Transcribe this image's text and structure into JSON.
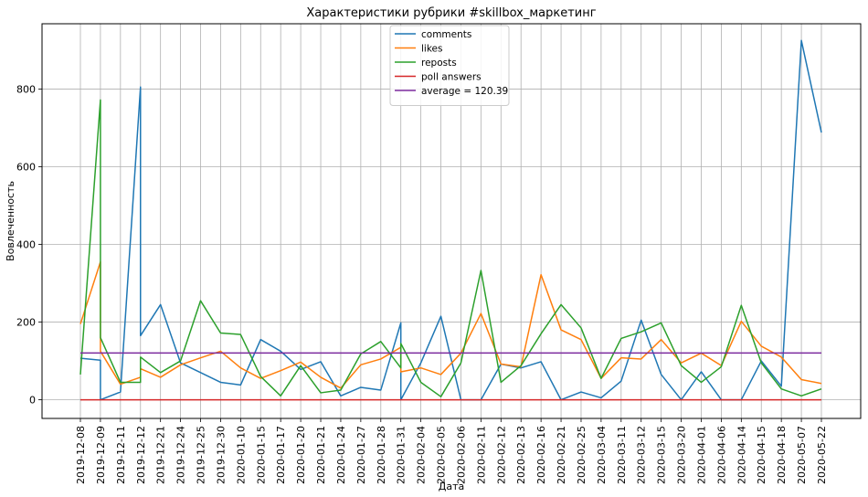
{
  "chart_data": {
    "type": "line",
    "title": "Характеристики рубрики #skillbox_маркетинг",
    "xlabel": "Дата",
    "ylabel": "Вовлеченность",
    "ylim": [
      -48,
      968
    ],
    "yticks": [
      0,
      200,
      400,
      600,
      800
    ],
    "grid": true,
    "legend_position": "top-center",
    "categories": [
      "2019-12-08",
      "2019-12-09",
      "2019-12-11",
      "2019-12-12",
      "2019-12-21",
      "2019-12-24",
      "2019-12-25",
      "2019-12-30",
      "2020-01-10",
      "2020-01-15",
      "2020-01-17",
      "2020-01-20",
      "2020-01-21",
      "2020-01-24",
      "2020-01-27",
      "2020-01-28",
      "2020-01-31",
      "2020-02-04",
      "2020-02-05",
      "2020-02-06",
      "2020-02-11",
      "2020-02-12",
      "2020-02-13",
      "2020-02-16",
      "2020-02-21",
      "2020-02-25",
      "2020-03-04",
      "2020-03-11",
      "2020-03-12",
      "2020-03-15",
      "2020-03-20",
      "2020-04-01",
      "2020-04-06",
      "2020-04-14",
      "2020-04-15",
      "2020-04-18",
      "2020-05-07",
      "2020-05-22"
    ],
    "series": [
      {
        "name": "comments",
        "color": "#1f77b4",
        "points": [
          [
            0,
            107
          ],
          [
            1,
            102
          ],
          [
            1,
            0
          ],
          [
            2,
            20
          ],
          [
            3,
            805
          ],
          [
            3,
            165
          ],
          [
            4,
            245
          ],
          [
            5,
            95
          ],
          [
            6,
            70
          ],
          [
            7,
            45
          ],
          [
            8,
            38
          ],
          [
            9,
            155
          ],
          [
            10,
            125
          ],
          [
            11,
            78
          ],
          [
            12,
            98
          ],
          [
            13,
            10
          ],
          [
            14,
            32
          ],
          [
            15,
            25
          ],
          [
            16,
            198
          ],
          [
            16,
            0
          ],
          [
            17,
            95
          ],
          [
            18,
            215
          ],
          [
            19,
            0
          ],
          [
            20,
            0
          ],
          [
            21,
            92
          ],
          [
            22,
            82
          ],
          [
            23,
            98
          ],
          [
            24,
            0
          ],
          [
            25,
            20
          ],
          [
            26,
            5
          ],
          [
            27,
            48
          ],
          [
            28,
            205
          ],
          [
            29,
            65
          ],
          [
            30,
            0
          ],
          [
            31,
            72
          ],
          [
            32,
            0
          ],
          [
            33,
            0
          ],
          [
            34,
            100
          ],
          [
            35,
            35
          ],
          [
            36,
            925
          ],
          [
            37,
            688
          ]
        ]
      },
      {
        "name": "likes",
        "color": "#ff7f0e",
        "points": [
          [
            0,
            195
          ],
          [
            1,
            355
          ],
          [
            1,
            125
          ],
          [
            2,
            40
          ],
          [
            3,
            58
          ],
          [
            3,
            80
          ],
          [
            4,
            58
          ],
          [
            5,
            90
          ],
          [
            6,
            108
          ],
          [
            7,
            125
          ],
          [
            8,
            82
          ],
          [
            9,
            55
          ],
          [
            10,
            75
          ],
          [
            11,
            97
          ],
          [
            12,
            58
          ],
          [
            13,
            30
          ],
          [
            14,
            90
          ],
          [
            15,
            105
          ],
          [
            16,
            135
          ],
          [
            16,
            72
          ],
          [
            17,
            82
          ],
          [
            18,
            65
          ],
          [
            19,
            120
          ],
          [
            20,
            222
          ],
          [
            21,
            92
          ],
          [
            22,
            85
          ],
          [
            23,
            322
          ],
          [
            24,
            180
          ],
          [
            25,
            155
          ],
          [
            26,
            55
          ],
          [
            27,
            108
          ],
          [
            28,
            105
          ],
          [
            29,
            155
          ],
          [
            30,
            95
          ],
          [
            31,
            120
          ],
          [
            32,
            88
          ],
          [
            33,
            202
          ],
          [
            34,
            138
          ],
          [
            35,
            110
          ],
          [
            36,
            52
          ],
          [
            37,
            42
          ]
        ]
      },
      {
        "name": "reposts",
        "color": "#2ca02c",
        "points": [
          [
            0,
            65
          ],
          [
            1,
            772
          ],
          [
            1,
            160
          ],
          [
            2,
            45
          ],
          [
            3,
            45
          ],
          [
            3,
            110
          ],
          [
            4,
            70
          ],
          [
            5,
            100
          ],
          [
            6,
            255
          ],
          [
            7,
            172
          ],
          [
            8,
            168
          ],
          [
            9,
            60
          ],
          [
            10,
            10
          ],
          [
            11,
            88
          ],
          [
            12,
            18
          ],
          [
            13,
            25
          ],
          [
            14,
            118
          ],
          [
            15,
            150
          ],
          [
            16,
            82
          ],
          [
            16,
            145
          ],
          [
            17,
            45
          ],
          [
            18,
            8
          ],
          [
            19,
            95
          ],
          [
            20,
            333
          ],
          [
            21,
            45
          ],
          [
            22,
            88
          ],
          [
            23,
            170
          ],
          [
            24,
            245
          ],
          [
            25,
            185
          ],
          [
            26,
            55
          ],
          [
            27,
            158
          ],
          [
            28,
            175
          ],
          [
            29,
            198
          ],
          [
            30,
            88
          ],
          [
            31,
            45
          ],
          [
            32,
            85
          ],
          [
            33,
            243
          ],
          [
            34,
            95
          ],
          [
            35,
            28
          ],
          [
            36,
            10
          ],
          [
            37,
            28
          ]
        ]
      },
      {
        "name": "poll answers",
        "color": "#d62728",
        "points": [
          [
            0,
            0
          ],
          [
            37,
            0
          ]
        ]
      },
      {
        "name": "average = 120.39",
        "color": "#7b2a9e",
        "points": [
          [
            0,
            120.39
          ],
          [
            37,
            120.39
          ]
        ]
      }
    ]
  }
}
